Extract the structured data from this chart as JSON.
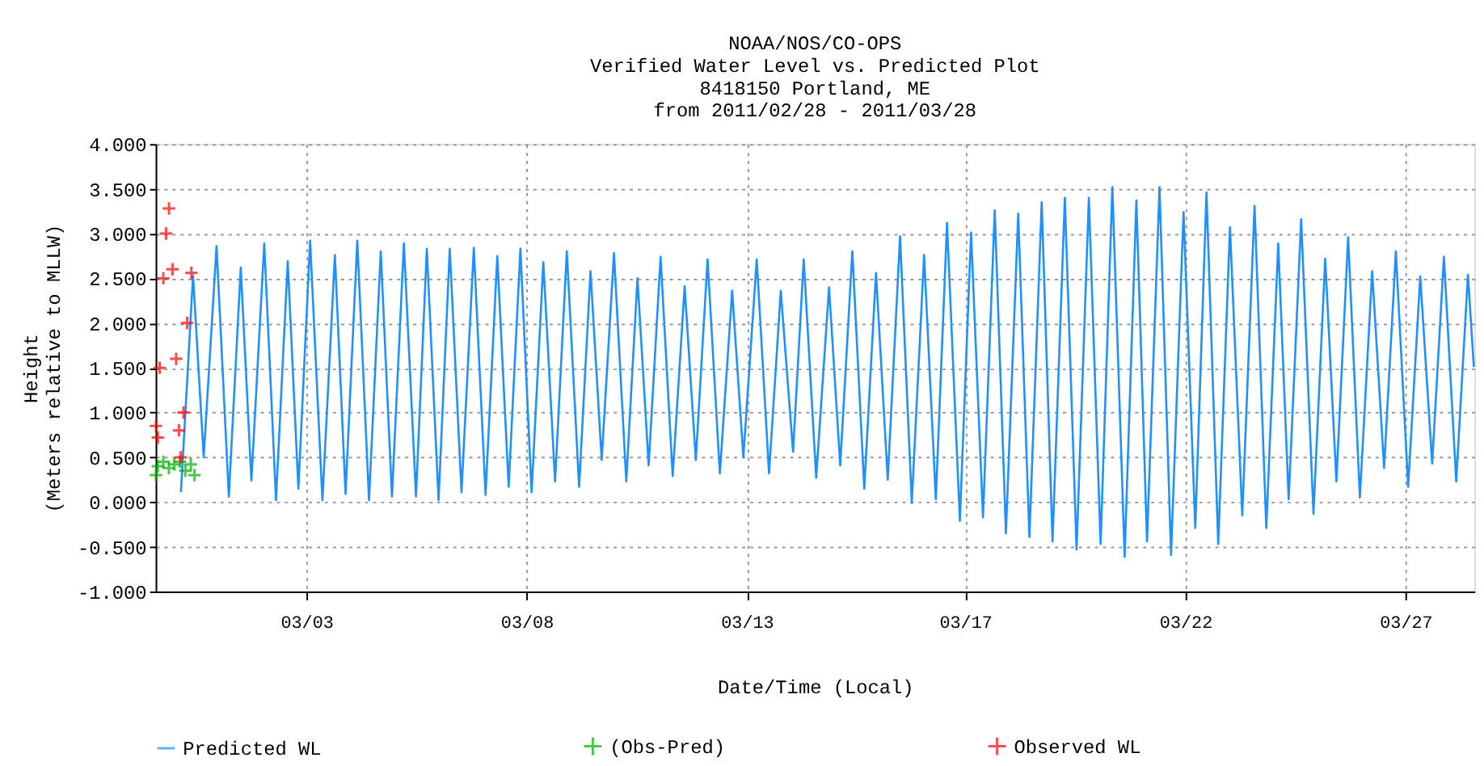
{
  "chart_data": {
    "type": "line",
    "title": "NOAA/NOS/CO-OPS\nVerified  Water Level vs. Predicted Plot\n8418150 Portland, ME\nfrom 2011/02/28 - 2011/03/28",
    "xlabel": "Date/Time (Local)",
    "ylabel": "Height\n(Meters relative to MLLW)",
    "xlim": [
      "2011-02-27T13:48",
      "2011-03-29T12:30"
    ],
    "xticks": [
      {
        "value": "2011-03-03T00:00",
        "label": "03/03"
      },
      {
        "value": "2011-03-08T00:00",
        "label": "03/08"
      },
      {
        "value": "2011-03-13T00:00",
        "label": "03/13"
      },
      {
        "value": "2011-03-17T23:00",
        "label": "03/17"
      },
      {
        "value": "2011-03-22T23:00",
        "label": "03/22"
      },
      {
        "value": "2011-03-27T23:00",
        "label": "03/27"
      }
    ],
    "ylim": [
      -1,
      4
    ],
    "yticks": [
      {
        "value": -1,
        "label": "-1.000"
      },
      {
        "value": -0.5,
        "label": "-0.500"
      },
      {
        "value": 0,
        "label": "0.000"
      },
      {
        "value": 0.5,
        "label": "0.500"
      },
      {
        "value": 1,
        "label": "1.000"
      },
      {
        "value": 1.5,
        "label": "1.500"
      },
      {
        "value": 2,
        "label": "2.000"
      },
      {
        "value": 2.5,
        "label": "2.500"
      },
      {
        "value": 3,
        "label": "3.000"
      },
      {
        "value": 3.5,
        "label": "3.500"
      },
      {
        "value": 4,
        "label": "4.000"
      }
    ],
    "grid": true,
    "legend": "bottom",
    "series": [
      {
        "name": "Predicted WL",
        "color": "#1e90ff",
        "marker": "none",
        "line_style": "solid",
        "x": [
          "2011-02-28T03:36",
          "2011-02-28T10:12",
          "2011-02-28T16:00",
          "2011-02-28T23:00",
          "2011-03-01T05:42",
          "2011-03-01T12:12",
          "2011-03-01T18:00",
          "2011-03-02T01:00",
          "2011-03-02T07:24",
          "2011-03-02T13:48",
          "2011-03-02T19:36",
          "2011-03-03T02:00",
          "2011-03-03T08:42",
          "2011-03-03T15:30",
          "2011-03-03T21:18",
          "2011-03-04T03:42",
          "2011-03-04T10:06",
          "2011-03-04T16:30",
          "2011-03-04T22:36",
          "2011-03-05T05:06",
          "2011-03-05T11:42",
          "2011-03-05T17:36",
          "2011-03-06T00:00",
          "2011-03-06T06:06",
          "2011-03-06T12:30",
          "2011-03-06T19:12",
          "2011-03-07T01:36",
          "2011-03-07T08:00",
          "2011-03-07T14:12",
          "2011-03-07T20:36",
          "2011-03-08T02:42",
          "2011-03-08T09:06",
          "2011-03-08T15:30",
          "2011-03-08T21:54",
          "2011-03-09T04:36",
          "2011-03-09T10:48",
          "2011-03-09T16:54",
          "2011-03-09T23:36",
          "2011-03-10T06:18",
          "2011-03-10T12:24",
          "2011-03-10T18:30",
          "2011-03-11T01:00",
          "2011-03-11T07:36",
          "2011-03-11T14:06",
          "2011-03-11T20:12",
          "2011-03-12T02:36",
          "2011-03-12T09:18",
          "2011-03-12T16:00",
          "2011-03-12T22:06",
          "2011-03-13T05:24",
          "2011-03-13T12:06",
          "2011-03-13T18:30",
          "2011-03-14T01:12",
          "2011-03-14T07:00",
          "2011-03-14T13:48",
          "2011-03-14T20:48",
          "2011-03-15T02:54",
          "2011-03-15T09:30",
          "2011-03-15T16:00",
          "2011-03-15T22:24",
          "2011-03-16T04:48",
          "2011-03-16T11:30",
          "2011-03-16T17:54",
          "2011-03-17T00:36",
          "2011-03-17T07:00",
          "2011-03-17T13:06",
          "2011-03-17T20:06",
          "2011-03-18T02:12",
          "2011-03-18T08:42",
          "2011-03-18T15:06",
          "2011-03-18T21:12",
          "2011-03-19T03:54",
          "2011-03-19T10:00",
          "2011-03-19T16:42",
          "2011-03-19T22:36",
          "2011-03-20T05:18",
          "2011-03-20T11:42",
          "2011-03-20T18:24",
          "2011-03-21T00:48",
          "2011-03-21T07:12",
          "2011-03-21T13:54",
          "2011-03-21T20:18",
          "2011-03-22T02:06",
          "2011-03-22T08:54",
          "2011-03-22T15:12",
          "2011-03-22T22:00",
          "2011-03-23T04:24",
          "2011-03-23T10:30",
          "2011-03-23T16:54",
          "2011-03-23T23:18",
          "2011-03-24T06:00",
          "2011-03-24T12:42",
          "2011-03-24T19:06",
          "2011-03-25T01:36",
          "2011-03-25T07:18",
          "2011-03-25T14:06",
          "2011-03-25T20:48",
          "2011-03-26T03:12",
          "2011-03-26T09:18",
          "2011-03-26T15:42",
          "2011-03-26T22:06",
          "2011-03-27T04:48",
          "2011-03-27T11:18",
          "2011-03-27T17:42",
          "2011-03-28T00:24",
          "2011-03-28T07:00",
          "2011-03-28T13:30",
          "2011-03-28T19:54",
          "2011-03-29T02:36",
          "2011-03-29T09:00",
          "2011-03-29T12:12"
        ],
        "values": [
          0.11,
          2.53,
          0.5,
          2.86,
          0.06,
          2.62,
          0.24,
          2.89,
          0.02,
          2.69,
          0.15,
          2.92,
          0.02,
          2.76,
          0.09,
          2.92,
          0.02,
          2.8,
          0.06,
          2.89,
          0.06,
          2.83,
          0.02,
          2.83,
          0.11,
          2.84,
          0.08,
          2.75,
          0.17,
          2.83,
          0.11,
          2.68,
          0.23,
          2.8,
          0.17,
          2.58,
          0.47,
          2.78,
          0.23,
          2.5,
          0.41,
          2.74,
          0.29,
          2.41,
          0.47,
          2.71,
          0.32,
          2.36,
          0.5,
          2.71,
          0.32,
          2.36,
          0.56,
          2.71,
          0.27,
          2.4,
          0.41,
          2.8,
          0.15,
          2.56,
          0.25,
          2.97,
          -0.01,
          2.76,
          0.03,
          3.12,
          -0.21,
          3.01,
          -0.17,
          3.26,
          -0.35,
          3.22,
          -0.39,
          3.35,
          -0.44,
          3.4,
          -0.53,
          3.4,
          -0.47,
          3.52,
          -0.61,
          3.37,
          -0.44,
          3.52,
          -0.59,
          3.24,
          -0.29,
          3.46,
          -0.47,
          3.07,
          -0.15,
          3.31,
          -0.29,
          2.89,
          0.03,
          3.16,
          -0.13,
          2.72,
          0.23,
          2.96,
          0.05,
          2.58,
          0.38,
          2.8,
          0.17,
          2.52,
          0.43,
          2.74,
          0.23,
          2.54,
          1.51
        ]
      },
      {
        "name": "(Obs-Pred)",
        "type": "scatter",
        "color": "#00b000",
        "marker": "cross",
        "x": [
          "2011-02-27T14:00",
          "2011-02-27T15:00",
          "2011-02-27T18:00",
          "2011-02-27T21:00",
          "2011-02-28T00:00",
          "2011-02-28T03:00",
          "2011-02-28T06:00",
          "2011-02-28T09:00",
          "2011-02-28T11:00"
        ],
        "values": [
          0.3,
          0.4,
          0.45,
          0.38,
          0.42,
          0.45,
          0.35,
          0.42,
          0.3
        ]
      },
      {
        "name": "Observed WL",
        "type": "scatter",
        "color": "#ff0000",
        "marker": "cross",
        "x": [
          "2011-02-27T14:00",
          "2011-02-27T15:00",
          "2011-02-27T16:00",
          "2011-02-27T18:00",
          "2011-02-27T19:30",
          "2011-02-27T21:06",
          "2011-02-27T23:00",
          "2011-02-28T01:00",
          "2011-02-28T02:30",
          "2011-02-28T03:30",
          "2011-02-28T05:00",
          "2011-02-28T07:00",
          "2011-02-28T09:18"
        ],
        "values": [
          0.85,
          0.72,
          1.5,
          2.5,
          3.0,
          3.28,
          2.6,
          1.6,
          0.8,
          0.5,
          1.0,
          2.0,
          2.56
        ]
      }
    ]
  }
}
